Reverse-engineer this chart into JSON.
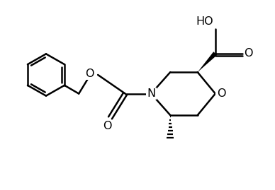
{
  "background": "#ffffff",
  "line_color": "#000000",
  "line_width": 1.8,
  "font_size": 11.5,
  "canvas_xlim": [
    0,
    10
  ],
  "canvas_ylim": [
    0,
    7
  ]
}
